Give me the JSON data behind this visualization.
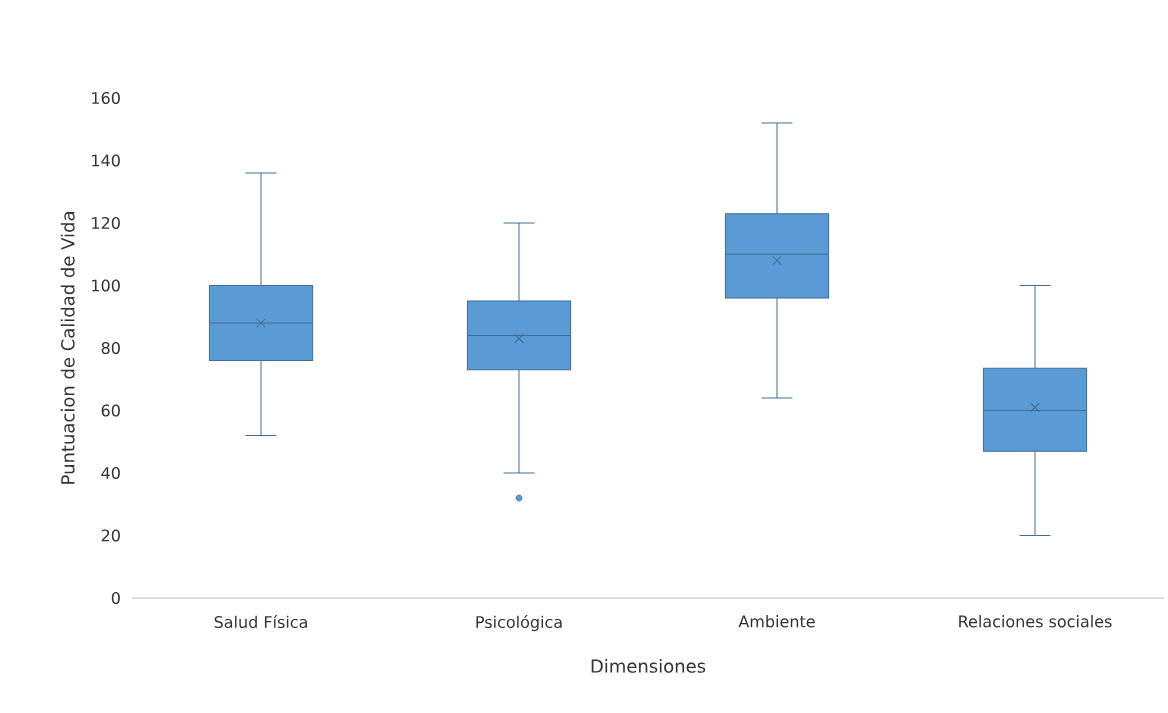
{
  "chart_data": {
    "type": "box",
    "xlabel": "Dimensiones",
    "ylabel": "Puntuacion de Calidad de Vida",
    "categories": [
      "Salud Física",
      "Psicológica",
      "Ambiente",
      "Relaciones sociales"
    ],
    "color": "#5b9bd5",
    "boxes": [
      {
        "low": 52,
        "q1": 76,
        "median": 88,
        "q3": 100,
        "high": 136,
        "mean": 88
      },
      {
        "low": 40,
        "q1": 73,
        "median": 84,
        "q3": 95,
        "high": 120,
        "mean": 83,
        "outliers": [
          32
        ]
      },
      {
        "low": 64,
        "q1": 96,
        "median": 110,
        "q3": 123,
        "high": 152,
        "mean": 108
      },
      {
        "low": 20,
        "q1": 47,
        "median": 60,
        "q3": 73.5,
        "high": 100,
        "mean": 61
      }
    ],
    "ylim": [
      0,
      160
    ],
    "yticks": [
      0,
      20,
      40,
      60,
      80,
      100,
      120,
      140,
      160
    ],
    "grid": false
  }
}
